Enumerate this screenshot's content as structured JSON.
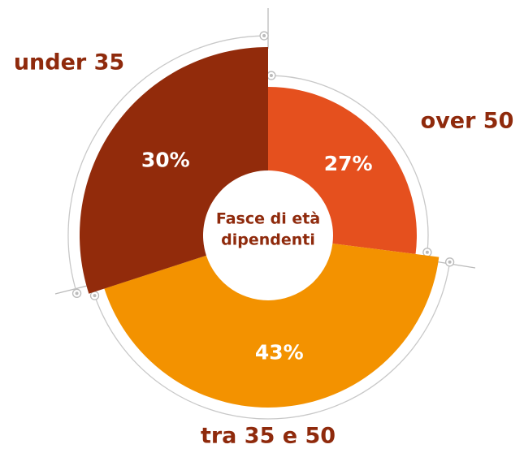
{
  "chart_data": {
    "type": "donut",
    "title_lines": [
      "Fasce di età",
      "dipendenti"
    ],
    "categories": [
      "over 50",
      "tra 35 e 50",
      "under 35"
    ],
    "values": [
      27,
      43,
      30
    ],
    "value_labels": [
      "27%",
      "43%",
      "30%"
    ],
    "colors": [
      "#e5501e",
      "#f39200",
      "#922b0b"
    ]
  }
}
